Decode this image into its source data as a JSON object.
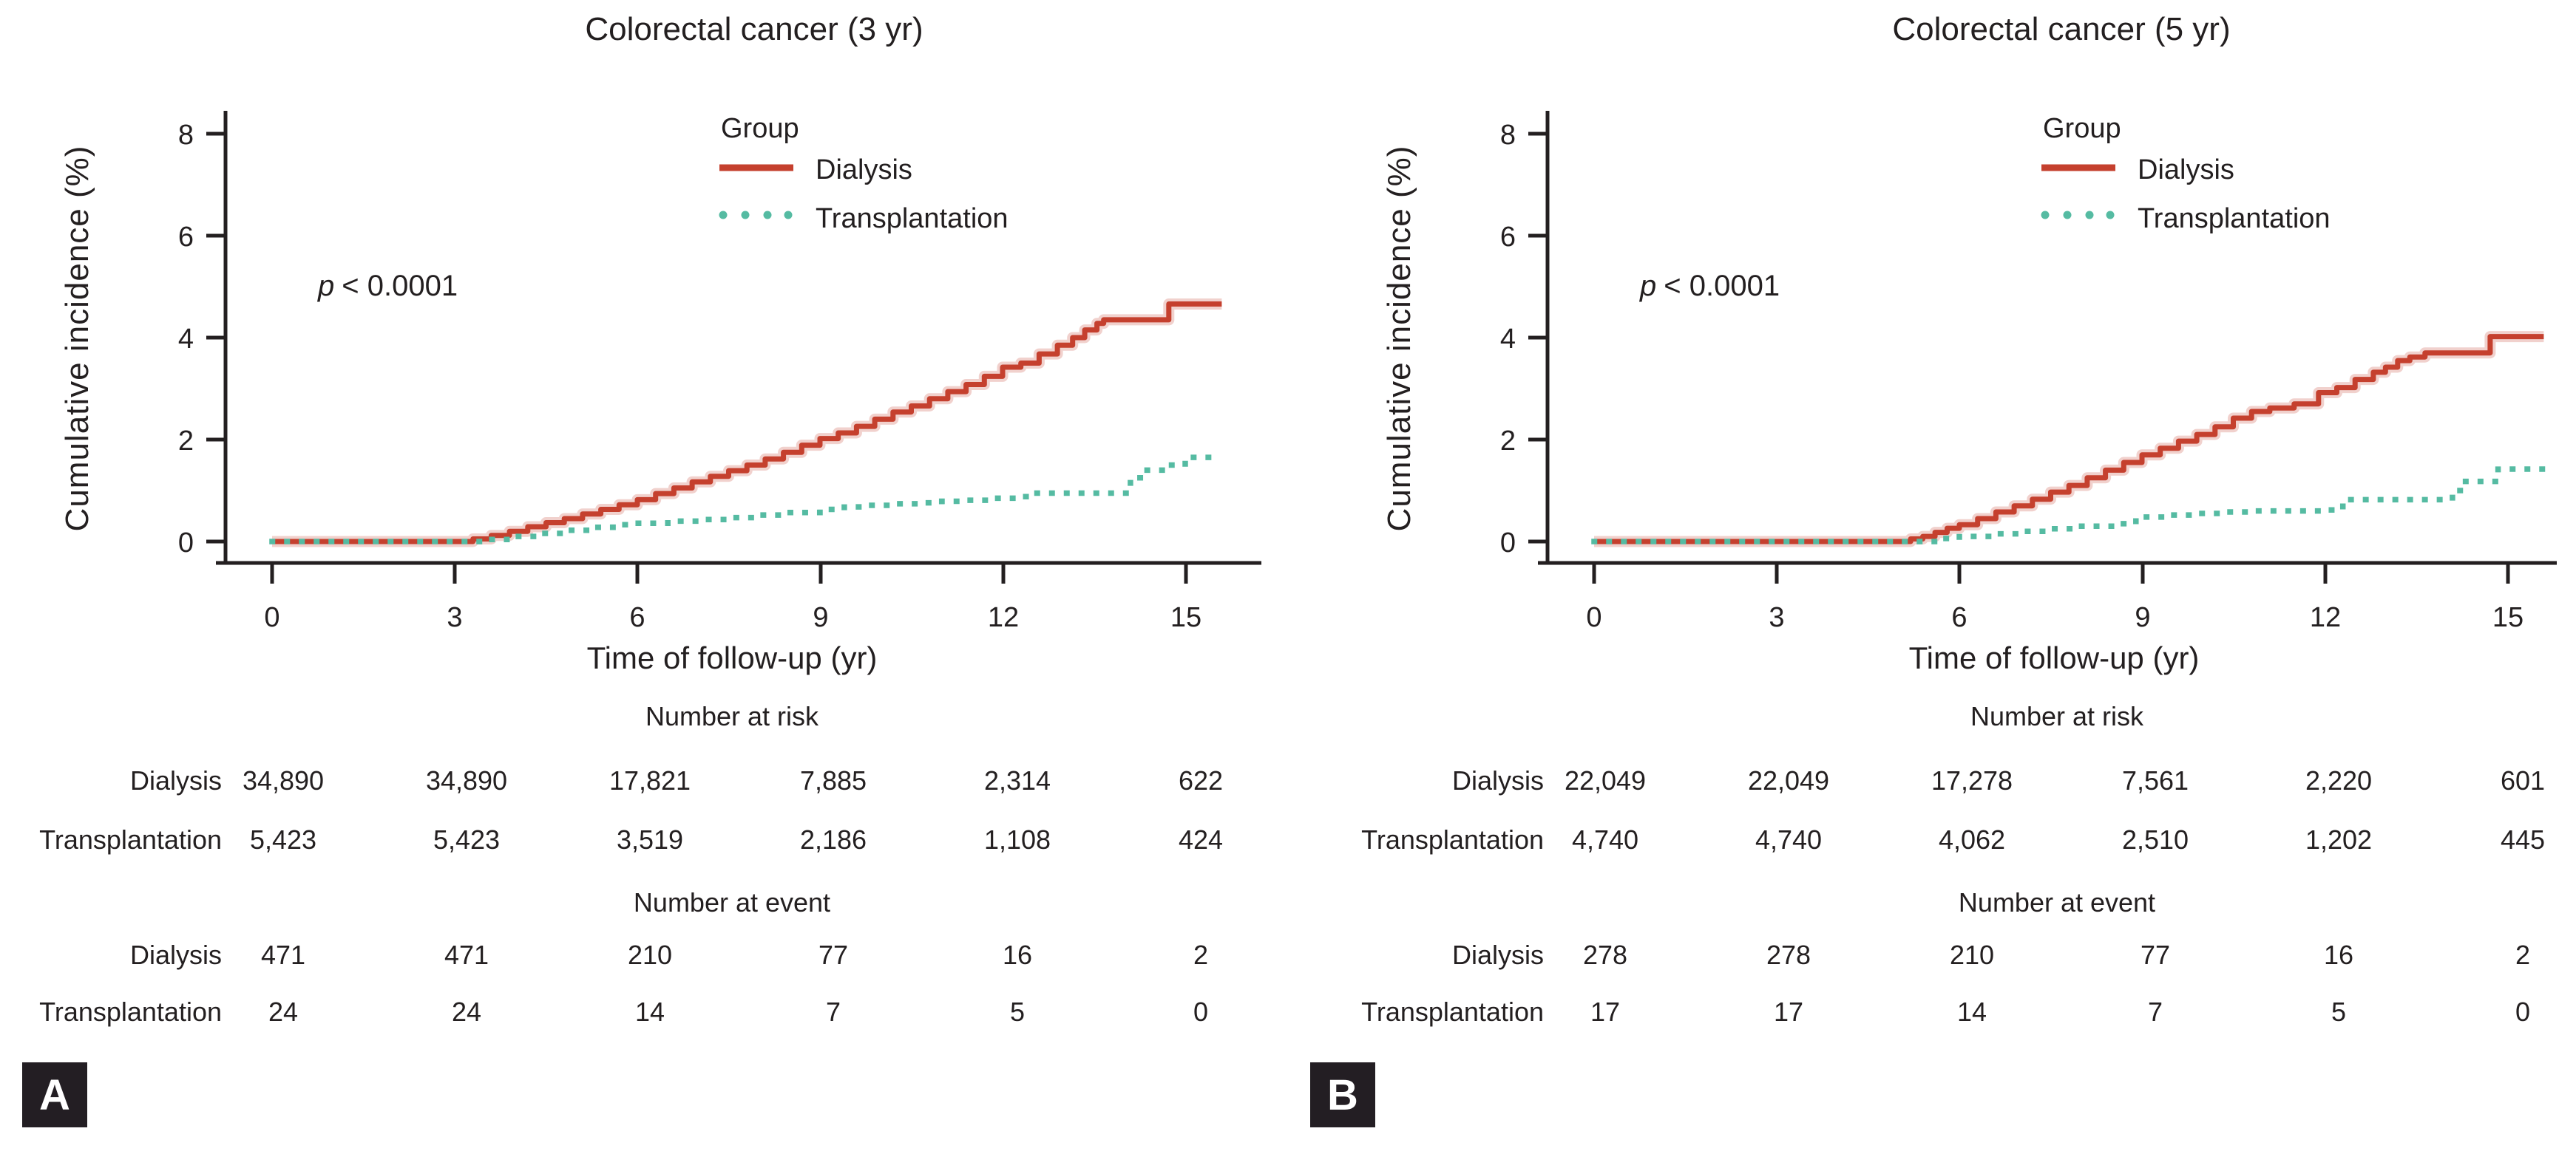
{
  "figure": {
    "badge_color": "#231e23",
    "text_color": "#231f20"
  },
  "chart_data": [
    {
      "type": "line",
      "panel_label": "A",
      "title": "Colorectal cancer (3 yr)",
      "xlabel": "Time of follow-up (yr)",
      "ylabel": "Cumulative incidence (%)",
      "xlim": [
        0,
        15.6
      ],
      "ylim": [
        0,
        8
      ],
      "x_ticks": [
        0,
        3,
        6,
        9,
        12,
        15
      ],
      "y_ticks": [
        0,
        2,
        4,
        6,
        8
      ],
      "grid": false,
      "legend_title": "Group",
      "legend_position": "top-center-inside",
      "annotation": "p < 0.0001",
      "annotation_var": "p",
      "annotation_rest": "< 0.0001",
      "series": [
        {
          "name": "Dialysis",
          "style": "solid",
          "color": "#c5402e",
          "step": true,
          "points": [
            [
              0,
              0
            ],
            [
              3.1,
              0
            ],
            [
              3.3,
              0.05
            ],
            [
              3.6,
              0.12
            ],
            [
              3.9,
              0.2
            ],
            [
              4.2,
              0.29
            ],
            [
              4.5,
              0.37
            ],
            [
              4.8,
              0.45
            ],
            [
              5.1,
              0.54
            ],
            [
              5.4,
              0.63
            ],
            [
              5.7,
              0.72
            ],
            [
              6.0,
              0.82
            ],
            [
              6.3,
              0.94
            ],
            [
              6.6,
              1.05
            ],
            [
              6.9,
              1.17
            ],
            [
              7.2,
              1.28
            ],
            [
              7.5,
              1.39
            ],
            [
              7.8,
              1.5
            ],
            [
              8.1,
              1.62
            ],
            [
              8.4,
              1.75
            ],
            [
              8.7,
              1.89
            ],
            [
              9.0,
              2.02
            ],
            [
              9.3,
              2.13
            ],
            [
              9.6,
              2.26
            ],
            [
              9.9,
              2.4
            ],
            [
              10.2,
              2.54
            ],
            [
              10.5,
              2.66
            ],
            [
              10.8,
              2.8
            ],
            [
              11.1,
              2.94
            ],
            [
              11.4,
              3.08
            ],
            [
              11.7,
              3.24
            ],
            [
              12.0,
              3.42
            ],
            [
              12.3,
              3.5
            ],
            [
              12.6,
              3.68
            ],
            [
              12.9,
              3.85
            ],
            [
              13.15,
              4.0
            ],
            [
              13.35,
              4.15
            ],
            [
              13.55,
              4.28
            ],
            [
              13.66,
              4.35
            ],
            [
              14.68,
              4.35
            ],
            [
              14.73,
              4.66
            ],
            [
              15.6,
              4.66
            ]
          ]
        },
        {
          "name": "Transplantation",
          "style": "dotted",
          "color": "#55bba2",
          "step": true,
          "points": [
            [
              0,
              0
            ],
            [
              3.3,
              0
            ],
            [
              3.6,
              0.04
            ],
            [
              4.0,
              0.1
            ],
            [
              4.4,
              0.16
            ],
            [
              4.8,
              0.22
            ],
            [
              5.2,
              0.28
            ],
            [
              5.6,
              0.33
            ],
            [
              6.0,
              0.36
            ],
            [
              6.5,
              0.4
            ],
            [
              7.0,
              0.43
            ],
            [
              7.5,
              0.47
            ],
            [
              8.0,
              0.52
            ],
            [
              8.5,
              0.57
            ],
            [
              9.0,
              0.63
            ],
            [
              9.4,
              0.68
            ],
            [
              9.8,
              0.71
            ],
            [
              10.2,
              0.74
            ],
            [
              10.6,
              0.76
            ],
            [
              11.0,
              0.79
            ],
            [
              11.4,
              0.81
            ],
            [
              11.8,
              0.85
            ],
            [
              12.2,
              0.88
            ],
            [
              12.4,
              0.95
            ],
            [
              13.9,
              0.95
            ],
            [
              14.1,
              1.25
            ],
            [
              14.35,
              1.4
            ],
            [
              14.7,
              1.5
            ],
            [
              15.0,
              1.65
            ],
            [
              15.6,
              1.67
            ]
          ]
        }
      ],
      "number_at_risk": {
        "header": "Number at risk",
        "times": [
          0,
          3,
          6,
          9,
          12,
          15
        ],
        "rows": [
          {
            "label": "Dialysis",
            "values": [
              "34,890",
              "34,890",
              "17,821",
              "7,885",
              "2,314",
              "622"
            ]
          },
          {
            "label": "Transplantation",
            "values": [
              "5,423",
              "5,423",
              "3,519",
              "2,186",
              "1,108",
              "424"
            ]
          }
        ]
      },
      "number_at_event": {
        "header": "Number at event",
        "times": [
          0,
          3,
          6,
          9,
          12,
          15
        ],
        "rows": [
          {
            "label": "Dialysis",
            "values": [
              "471",
              "471",
              "210",
              "77",
              "16",
              "2"
            ]
          },
          {
            "label": "Transplantation",
            "values": [
              "24",
              "24",
              "14",
              "7",
              "5",
              "0"
            ]
          }
        ]
      }
    },
    {
      "type": "line",
      "panel_label": "B",
      "title": "Colorectal cancer (5 yr)",
      "xlabel": "Time of follow-up (yr)",
      "ylabel": "Cumulative incidence (%)",
      "xlim": [
        0,
        15.6
      ],
      "ylim": [
        0,
        8
      ],
      "x_ticks": [
        0,
        3,
        6,
        9,
        12,
        15
      ],
      "y_ticks": [
        0,
        2,
        4,
        6,
        8
      ],
      "grid": false,
      "legend_title": "Group",
      "legend_position": "top-center-inside",
      "annotation": "p < 0.0001",
      "annotation_var": "p",
      "annotation_rest": "< 0.0001",
      "series": [
        {
          "name": "Dialysis",
          "style": "solid",
          "color": "#c5402e",
          "step": true,
          "points": [
            [
              0,
              0
            ],
            [
              5.0,
              0
            ],
            [
              5.2,
              0.05
            ],
            [
              5.4,
              0.1
            ],
            [
              5.6,
              0.18
            ],
            [
              5.8,
              0.26
            ],
            [
              6.0,
              0.33
            ],
            [
              6.3,
              0.45
            ],
            [
              6.6,
              0.58
            ],
            [
              6.9,
              0.7
            ],
            [
              7.2,
              0.83
            ],
            [
              7.5,
              0.97
            ],
            [
              7.8,
              1.1
            ],
            [
              8.1,
              1.25
            ],
            [
              8.4,
              1.4
            ],
            [
              8.7,
              1.55
            ],
            [
              9.0,
              1.7
            ],
            [
              9.3,
              1.83
            ],
            [
              9.6,
              1.97
            ],
            [
              9.9,
              2.1
            ],
            [
              10.2,
              2.25
            ],
            [
              10.5,
              2.42
            ],
            [
              10.8,
              2.55
            ],
            [
              11.1,
              2.62
            ],
            [
              11.5,
              2.7
            ],
            [
              11.9,
              2.92
            ],
            [
              12.2,
              3.02
            ],
            [
              12.5,
              3.18
            ],
            [
              12.8,
              3.32
            ],
            [
              13.0,
              3.42
            ],
            [
              13.2,
              3.55
            ],
            [
              13.4,
              3.62
            ],
            [
              13.65,
              3.7
            ],
            [
              14.66,
              3.7
            ],
            [
              14.72,
              4.02
            ],
            [
              15.6,
              4.02
            ]
          ]
        },
        {
          "name": "Transplantation",
          "style": "dotted",
          "color": "#55bba2",
          "step": true,
          "points": [
            [
              0,
              0
            ],
            [
              5.2,
              0
            ],
            [
              5.6,
              0.06
            ],
            [
              6.0,
              0.1
            ],
            [
              6.5,
              0.15
            ],
            [
              7.0,
              0.2
            ],
            [
              7.5,
              0.25
            ],
            [
              8.0,
              0.3
            ],
            [
              8.5,
              0.35
            ],
            [
              8.9,
              0.48
            ],
            [
              9.4,
              0.52
            ],
            [
              9.9,
              0.55
            ],
            [
              10.4,
              0.58
            ],
            [
              10.9,
              0.6
            ],
            [
              11.5,
              0.6
            ],
            [
              12.0,
              0.62
            ],
            [
              12.3,
              0.82
            ],
            [
              14.05,
              0.82
            ],
            [
              14.1,
              1.0
            ],
            [
              14.25,
              1.18
            ],
            [
              14.8,
              1.18
            ],
            [
              14.85,
              1.42
            ],
            [
              15.6,
              1.42
            ]
          ]
        }
      ],
      "number_at_risk": {
        "header": "Number at risk",
        "times": [
          0,
          3,
          6,
          9,
          12,
          15
        ],
        "rows": [
          {
            "label": "Dialysis",
            "values": [
              "22,049",
              "22,049",
              "17,278",
              "7,561",
              "2,220",
              "601"
            ]
          },
          {
            "label": "Transplantation",
            "values": [
              "4,740",
              "4,740",
              "4,062",
              "2,510",
              "1,202",
              "445"
            ]
          }
        ]
      },
      "number_at_event": {
        "header": "Number at event",
        "times": [
          0,
          3,
          6,
          9,
          12,
          15
        ],
        "rows": [
          {
            "label": "Dialysis",
            "values": [
              "278",
              "278",
              "210",
              "77",
              "16",
              "2"
            ]
          },
          {
            "label": "Transplantation",
            "values": [
              "17",
              "17",
              "14",
              "7",
              "5",
              "0"
            ]
          }
        ]
      }
    }
  ]
}
